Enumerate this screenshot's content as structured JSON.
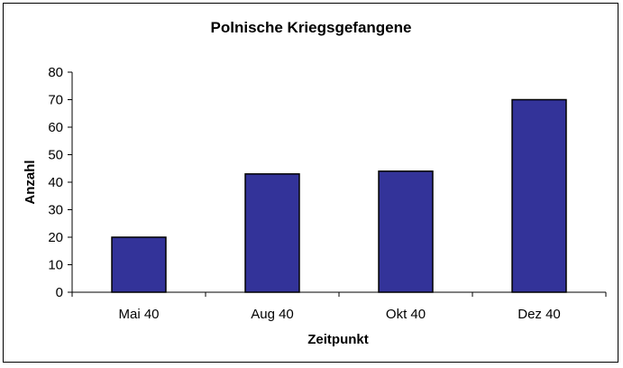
{
  "chart_data": {
    "type": "bar",
    "title": "Polnische Kriegsgefangene",
    "xlabel": "Zeitpunkt",
    "ylabel": "Anzahl",
    "categories": [
      "Mai 40",
      "Aug 40",
      "Okt 40",
      "Dez 40"
    ],
    "values": [
      20,
      43,
      44,
      70
    ],
    "ylim": [
      0,
      80
    ],
    "yticks": [
      0,
      10,
      20,
      30,
      40,
      50,
      60,
      70,
      80
    ],
    "grid": false,
    "legend": "none",
    "colors": {
      "bar_fill": "#333399",
      "bar_stroke": "#000000",
      "axis": "#000000",
      "background": "#ffffff"
    }
  }
}
